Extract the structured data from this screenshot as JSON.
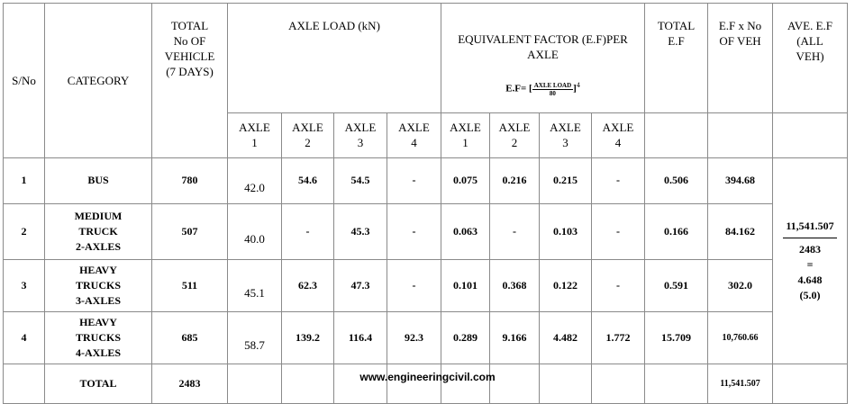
{
  "header": {
    "sno": "S/No",
    "category": "CATEGORY",
    "total_vehicles": "TOTAL\nNo OF\nVEHICLE\n(7 DAYS)",
    "axle_load": "AXLE LOAD (kN)",
    "equivalent_factor": "EQUIVALENT FACTOR (E.F)PER\nAXLE",
    "formula": {
      "lhs": "E.F=",
      "numerator": "AXLE LOAD",
      "denominator": "80",
      "exponent": "4"
    },
    "total_ef": "TOTAL\nE.F",
    "ef_x_no": "E.F x No\nOF VEH",
    "ave_ef": "AVE. E.F\n(ALL\nVEH)",
    "axle_load_axles": [
      "AXLE\n1",
      "AXLE\n2",
      "AXLE\n3",
      "AXLE\n4"
    ],
    "ef_axles": [
      "AXLE\n1",
      "AXLE\n2",
      "AXLE\n3",
      "AXLE\n4"
    ]
  },
  "rows": [
    [
      "1",
      "BUS",
      "780",
      "42.0",
      "54.6",
      "54.5",
      "-",
      "0.075",
      "0.216",
      "0.215",
      "-",
      "0.506",
      "394.68"
    ],
    [
      "2",
      "MEDIUM\nTRUCK\n2-AXLES",
      "507",
      "40.0",
      "-",
      "45.3",
      "-",
      "0.063",
      "-",
      "0.103",
      "-",
      "0.166",
      "84.162"
    ],
    [
      "3",
      "HEAVY\nTRUCKS\n3-AXLES",
      "511",
      "45.1",
      "62.3",
      "47.3",
      "-",
      "0.101",
      "0.368",
      "0.122",
      "-",
      "0.591",
      "302.0"
    ],
    [
      "4",
      "HEAVY\nTRUCKS\n4-AXLES",
      "685",
      "58.7",
      "139.2",
      "116.4",
      "92.3",
      "0.289",
      "9.166",
      "4.482",
      "1.772",
      "15.709",
      "10,760.66"
    ]
  ],
  "average": {
    "numerator": "11,541.507",
    "denominator": "2483",
    "equals": "=",
    "value": "4.648",
    "rounded": "(5.0)"
  },
  "total": {
    "label": "TOTAL",
    "vehicles": "2483",
    "ef_x_no": "11,541.507"
  },
  "footer": "www.engineeringcivil.com"
}
